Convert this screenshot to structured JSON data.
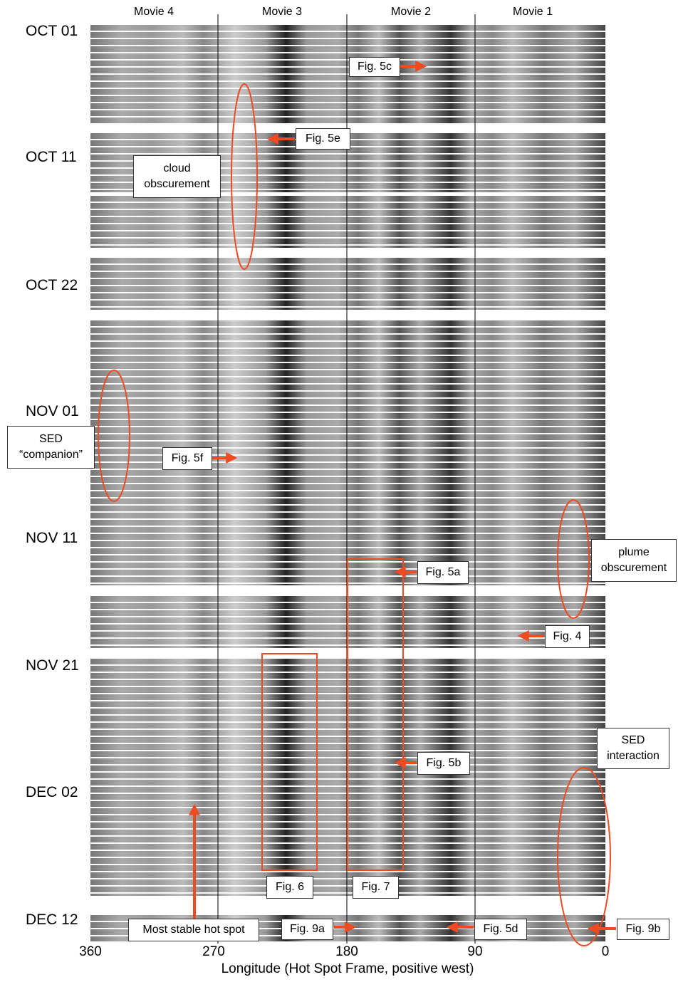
{
  "figure": {
    "columns": [
      "Movie 4",
      "Movie 3",
      "Movie 2",
      "Movie 1"
    ],
    "dates": [
      "OCT 01",
      "OCT 11",
      "OCT 22",
      "NOV 01",
      "NOV 11",
      "NOV 21",
      "DEC 02",
      "DEC 12"
    ],
    "x_ticks": [
      "360",
      "270",
      "180",
      "90",
      "0"
    ],
    "x_label": "Longitude (Hot Spot Frame, positive west)",
    "annotations": [
      "Fig. 5c",
      "Fig. 5e",
      "cloud obscurement",
      "SED “companion”",
      "Fig. 5f",
      "plume obscurement",
      "Fig. 5a",
      "Fig. 4",
      "SED interaction",
      "Fig. 5b",
      "Fig. 6",
      "Fig. 7",
      "Most stable hot spot",
      "Fig. 9a",
      "Fig. 5d",
      "Fig. 9b"
    ]
  }
}
